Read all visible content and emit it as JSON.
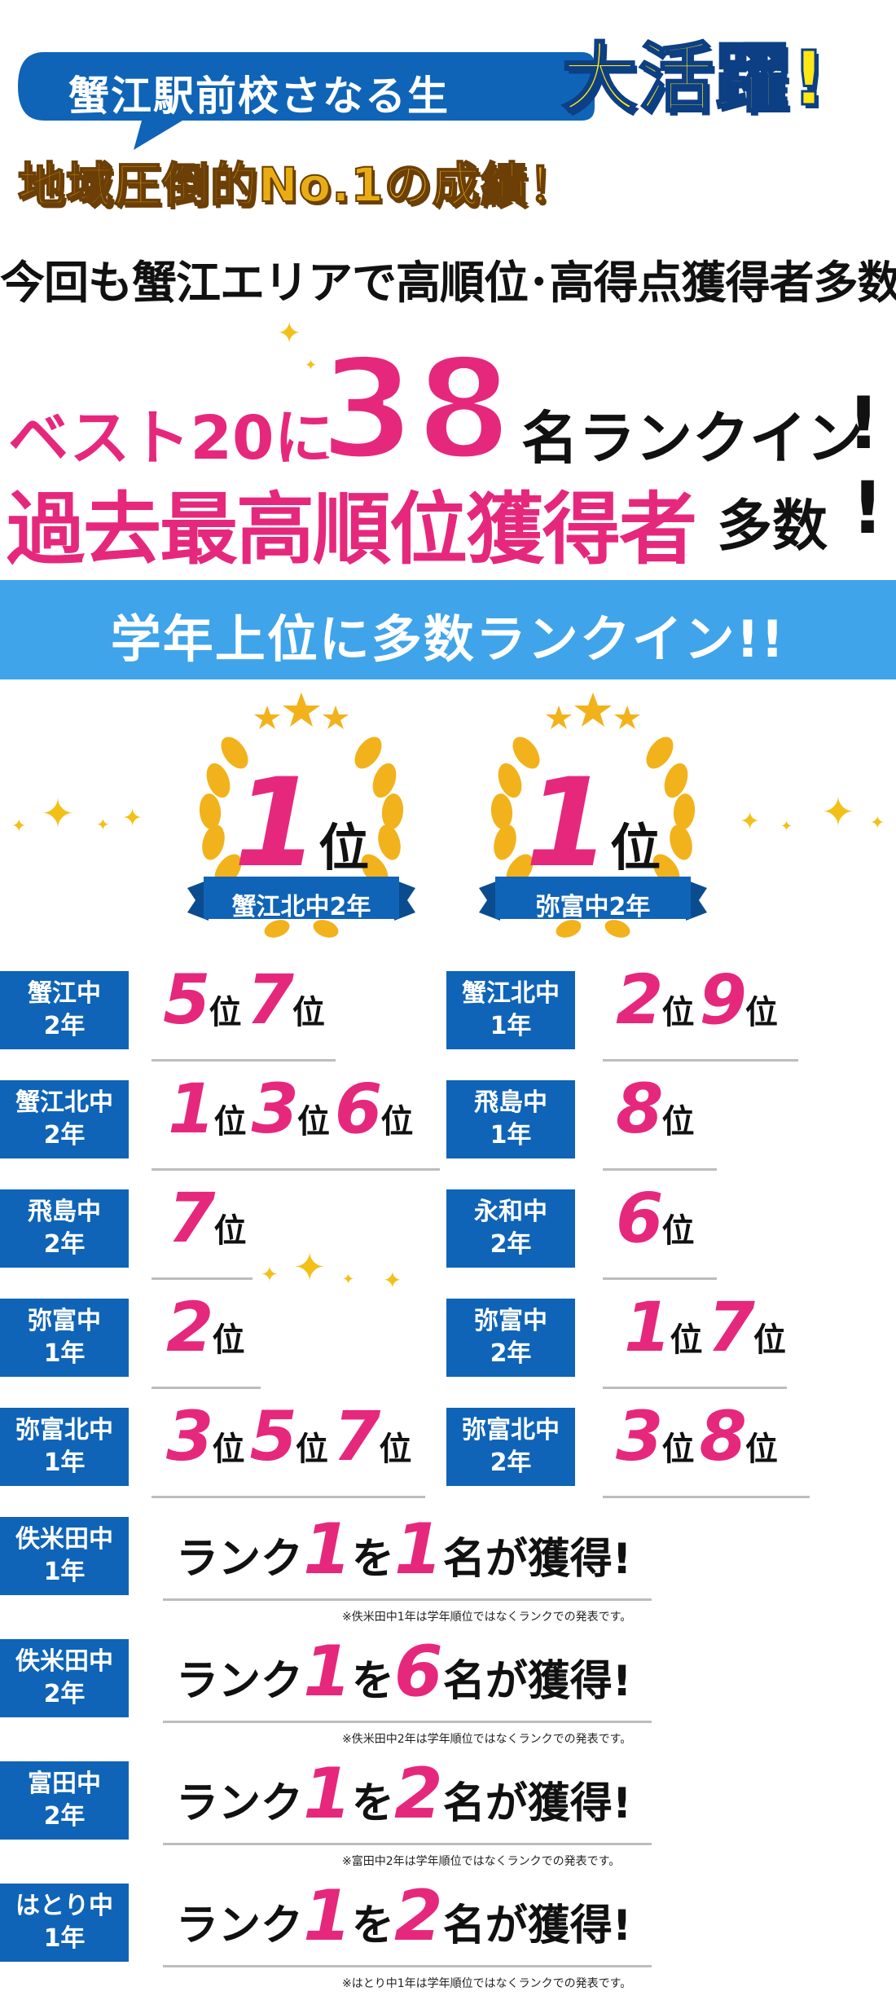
{
  "hero": {
    "title": "蟹江駅前校さなる生",
    "accent": "大活躍!"
  },
  "tagline_gold": "地域圧倒的No.1の成績！",
  "tagline_black": "今回も蟹江エリアで高順位･高得点獲得者多数!",
  "headline1": {
    "prefix": "ベスト20に",
    "count": "38",
    "suffix": "名ランクイン",
    "mark": "!"
  },
  "headline2": {
    "main": "過去最高順位獲得者",
    "suffix": "多数",
    "mark": "!"
  },
  "section_title": "学年上位に多数ランクイン!!",
  "awards": [
    {
      "rank": "1",
      "unit": "位",
      "school": "蟹江北中2年"
    },
    {
      "rank": "1",
      "unit": "位",
      "school": "弥富中2年"
    }
  ],
  "rank_unit": "位",
  "left_results": [
    {
      "school": "蟹江中",
      "grade": "2年",
      "ranks": [
        "5",
        "7"
      ]
    },
    {
      "school": "蟹江北中",
      "grade": "2年",
      "ranks": [
        "1",
        "3",
        "6"
      ]
    },
    {
      "school": "飛島中",
      "grade": "2年",
      "ranks": [
        "7"
      ]
    },
    {
      "school": "弥富中",
      "grade": "1年",
      "ranks": [
        "2"
      ]
    },
    {
      "school": "弥富北中",
      "grade": "1年",
      "ranks": [
        "3",
        "5",
        "7"
      ]
    }
  ],
  "right_results": [
    {
      "school": "蟹江北中",
      "grade": "1年",
      "ranks": [
        "2",
        "9"
      ]
    },
    {
      "school": "飛島中",
      "grade": "1年",
      "ranks": [
        "8"
      ]
    },
    {
      "school": "永和中",
      "grade": "2年",
      "ranks": [
        "6"
      ]
    },
    {
      "school": "弥富中",
      "grade": "2年",
      "ranks": [
        "1",
        "7"
      ]
    },
    {
      "school": "弥富北中",
      "grade": "2年",
      "ranks": [
        "3",
        "8"
      ]
    }
  ],
  "rank1_results": [
    {
      "school": "佚米田中",
      "grade": "1年",
      "pre": "ランク",
      "rank": "1",
      "mid": "を",
      "count": "1",
      "post": "名が獲得!",
      "note": "※佚米田中1年は学年順位ではなくランクでの発表です。"
    },
    {
      "school": "佚米田中",
      "grade": "2年",
      "pre": "ランク",
      "rank": "1",
      "mid": "を",
      "count": "6",
      "post": "名が獲得!",
      "note": "※佚米田中2年は学年順位ではなくランクでの発表です。"
    },
    {
      "school": "富田中",
      "grade": "2年",
      "pre": "ランク",
      "rank": "1",
      "mid": "を",
      "count": "2",
      "post": "名が獲得!",
      "note": "※富田中2年は学年順位ではなくランクでの発表です。"
    },
    {
      "school": "はとり中",
      "grade": "1年",
      "pre": "ランク",
      "rank": "1",
      "mid": "を",
      "count": "2",
      "post": "名が獲得!",
      "note": "※はとり中1年は学年順位ではなくランクでの発表です。"
    }
  ],
  "colors": {
    "pink": "#e6287c",
    "blue": "#0f64b7",
    "sky": "#3fa4ea",
    "gold": "#e9ad14",
    "yellow": "#ffe714"
  }
}
